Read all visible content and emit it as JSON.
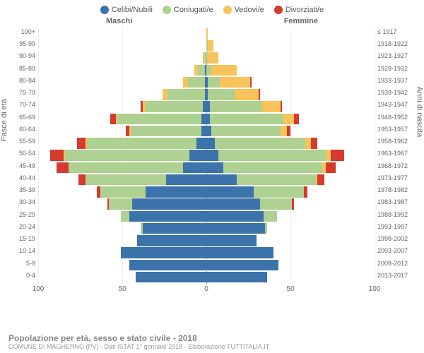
{
  "legend": [
    {
      "label": "Celibi/Nubili",
      "color": "#3b73aa"
    },
    {
      "label": "Coniugati/e",
      "color": "#aed090"
    },
    {
      "label": "Vedovi/e",
      "color": "#f7c35a"
    },
    {
      "label": "Divorziati/e",
      "color": "#d63a2d"
    }
  ],
  "header": {
    "male": "Maschi",
    "female": "Femmine",
    "top_year": "≤ 1917"
  },
  "axis": {
    "left": "Fasce di età",
    "right": "Anni di nascita"
  },
  "xmax": 100,
  "xticks": [
    100,
    50,
    0,
    50,
    100
  ],
  "age_labels": [
    "100+",
    "95-99",
    "90-94",
    "85-89",
    "80-84",
    "75-79",
    "70-74",
    "65-69",
    "60-64",
    "55-59",
    "50-54",
    "45-49",
    "40-44",
    "35-39",
    "30-34",
    "25-29",
    "20-24",
    "15-19",
    "10-14",
    "5-9",
    "0-4"
  ],
  "year_labels": [
    "≤ 1917",
    "1918-1922",
    "1923-1927",
    "1928-1932",
    "1933-1937",
    "1938-1942",
    "1943-1947",
    "1948-1952",
    "1953-1957",
    "1958-1962",
    "1963-1967",
    "1968-1972",
    "1973-1977",
    "1978-1982",
    "1983-1987",
    "1988-1992",
    "1993-1997",
    "1998-2002",
    "2003-2007",
    "2008-2012",
    "2013-2017"
  ],
  "rows": [
    {
      "m": [
        0,
        0,
        0,
        0
      ],
      "f": [
        0,
        0,
        1,
        0
      ]
    },
    {
      "m": [
        0,
        0,
        0,
        0
      ],
      "f": [
        0,
        1,
        3,
        0
      ]
    },
    {
      "m": [
        0,
        1,
        1,
        0
      ],
      "f": [
        0,
        1,
        6,
        0
      ]
    },
    {
      "m": [
        1,
        4,
        2,
        0
      ],
      "f": [
        0,
        3,
        15,
        0
      ]
    },
    {
      "m": [
        1,
        10,
        3,
        0
      ],
      "f": [
        1,
        7,
        18,
        1
      ]
    },
    {
      "m": [
        1,
        22,
        3,
        0
      ],
      "f": [
        1,
        16,
        14,
        1
      ]
    },
    {
      "m": [
        2,
        34,
        2,
        1
      ],
      "f": [
        2,
        31,
        11,
        1
      ]
    },
    {
      "m": [
        3,
        50,
        1,
        3
      ],
      "f": [
        2,
        44,
        6,
        3
      ]
    },
    {
      "m": [
        3,
        42,
        1,
        2
      ],
      "f": [
        3,
        41,
        4,
        2
      ]
    },
    {
      "m": [
        6,
        65,
        1,
        5
      ],
      "f": [
        5,
        54,
        3,
        4
      ]
    },
    {
      "m": [
        10,
        74,
        1,
        8
      ],
      "f": [
        7,
        64,
        3,
        8
      ]
    },
    {
      "m": [
        14,
        68,
        0,
        7
      ],
      "f": [
        10,
        59,
        2,
        6
      ]
    },
    {
      "m": [
        24,
        48,
        0,
        4
      ],
      "f": [
        18,
        47,
        1,
        4
      ]
    },
    {
      "m": [
        36,
        27,
        0,
        2
      ],
      "f": [
        28,
        30,
        0,
        2
      ]
    },
    {
      "m": [
        44,
        14,
        0,
        1
      ],
      "f": [
        32,
        19,
        0,
        1
      ]
    },
    {
      "m": [
        46,
        5,
        0,
        0
      ],
      "f": [
        34,
        8,
        0,
        0
      ]
    },
    {
      "m": [
        38,
        1,
        0,
        0
      ],
      "f": [
        35,
        1,
        0,
        0
      ]
    },
    {
      "m": [
        41,
        0,
        0,
        0
      ],
      "f": [
        30,
        0,
        0,
        0
      ]
    },
    {
      "m": [
        51,
        0,
        0,
        0
      ],
      "f": [
        40,
        0,
        0,
        0
      ]
    },
    {
      "m": [
        46,
        0,
        0,
        0
      ],
      "f": [
        43,
        0,
        0,
        0
      ]
    },
    {
      "m": [
        42,
        0,
        0,
        0
      ],
      "f": [
        36,
        0,
        0,
        0
      ]
    }
  ],
  "colors": {
    "grid": "#eee",
    "center": "#999",
    "bg": "#ffffff"
  },
  "footer": {
    "title": "Popolazione per età, sesso e stato civile - 2018",
    "sub": "COMUNE DI MAGHERNO (PV) - Dati ISTAT 1° gennaio 2018 - Elaborazione TUTTITALIA.IT"
  }
}
